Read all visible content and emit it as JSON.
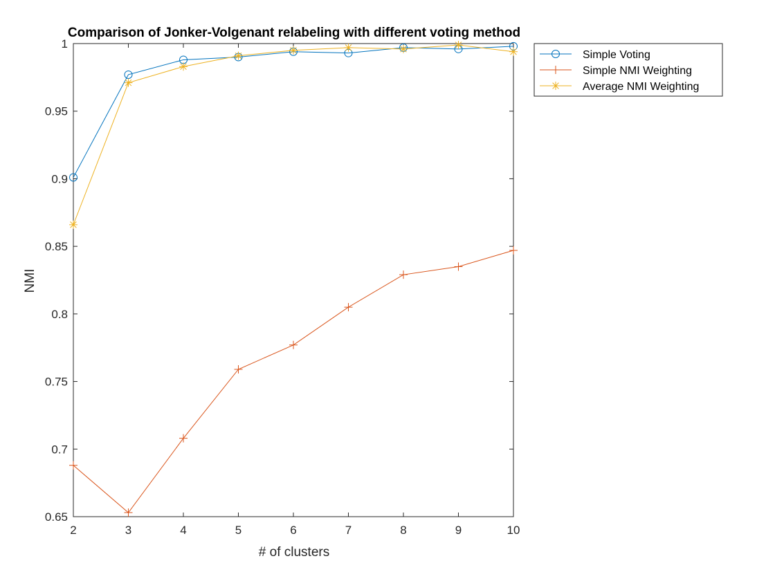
{
  "chart_data": {
    "type": "line",
    "title": "Comparison of Jonker-Volgenant relabeling with different voting method",
    "xlabel": "# of clusters",
    "ylabel": "NMI",
    "xlim": [
      2,
      10
    ],
    "ylim": [
      0.65,
      1
    ],
    "xticks": [
      2,
      3,
      4,
      5,
      6,
      7,
      8,
      9,
      10
    ],
    "yticks": [
      0.65,
      0.7,
      0.75,
      0.8,
      0.85,
      0.9,
      0.95,
      1
    ],
    "ytick_labels": [
      "0.65",
      "0.7",
      "0.75",
      "0.8",
      "0.85",
      "0.9",
      "0.95",
      "1"
    ],
    "grid": false,
    "legend_position": "outside-top-right",
    "x": [
      2,
      3,
      4,
      5,
      6,
      7,
      8,
      9,
      10
    ],
    "series": [
      {
        "name": "Simple Voting",
        "color": "#0072BD",
        "marker": "circle",
        "values": [
          0.901,
          0.977,
          0.988,
          0.99,
          0.994,
          0.993,
          0.997,
          0.996,
          0.998
        ]
      },
      {
        "name": "Simple NMI Weighting",
        "color": "#D95319",
        "marker": "plus",
        "values": [
          0.688,
          0.653,
          0.708,
          0.759,
          0.777,
          0.805,
          0.829,
          0.835,
          0.847
        ]
      },
      {
        "name": "Average NMI Weighting",
        "color": "#EDB120",
        "marker": "star",
        "values": [
          0.866,
          0.971,
          0.983,
          0.991,
          0.995,
          0.997,
          0.996,
          0.999,
          0.994
        ]
      }
    ]
  }
}
